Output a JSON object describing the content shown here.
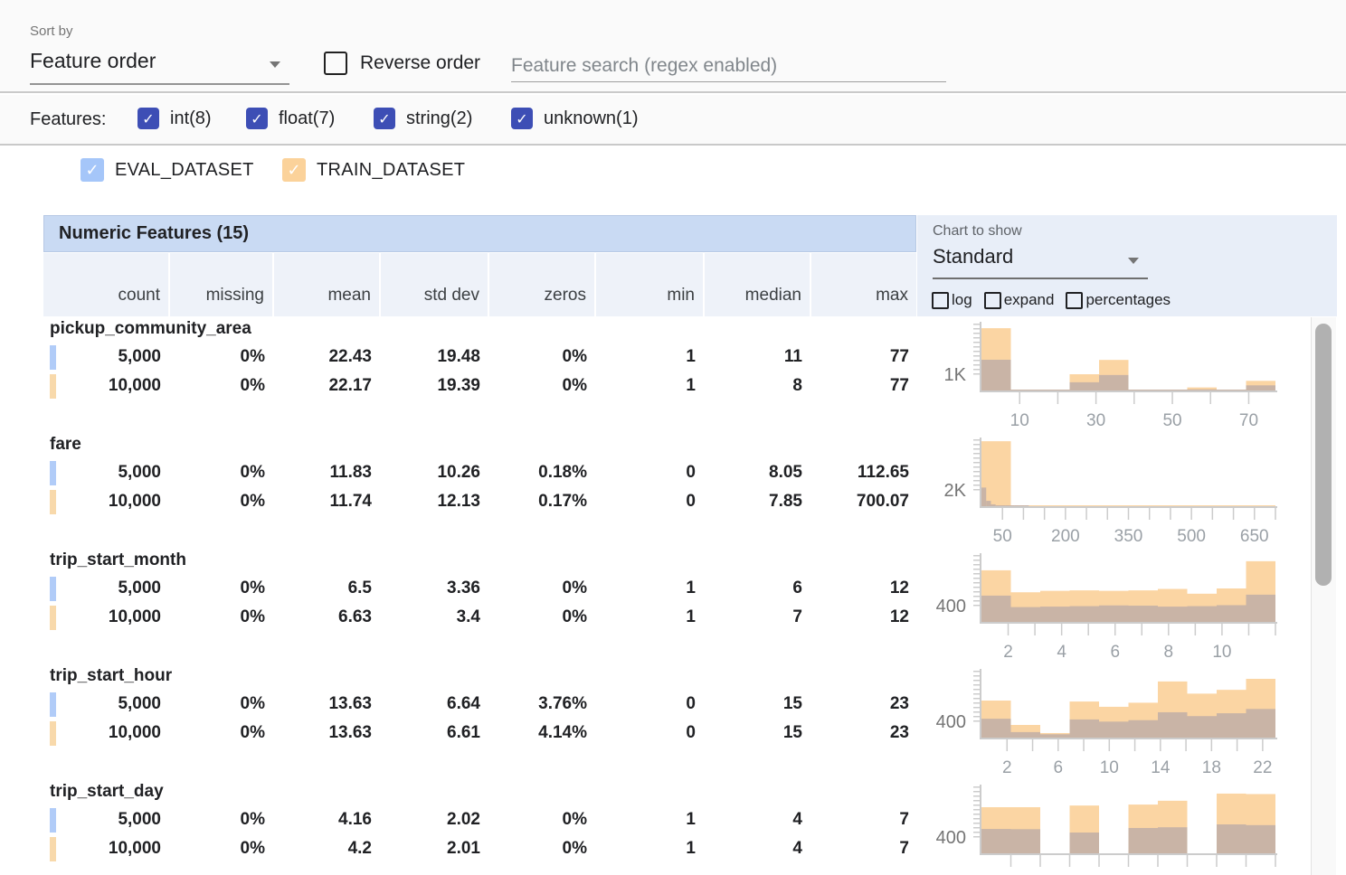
{
  "toolbar": {
    "sort_by_label": "Sort by",
    "sort_by_value": "Feature order",
    "reverse_order_label": "Reverse order",
    "reverse_order_checked": false,
    "search_placeholder": "Feature search (regex enabled)",
    "search_value": ""
  },
  "feature_filters": {
    "label": "Features:",
    "items": [
      {
        "label": "int(8)",
        "checked": true
      },
      {
        "label": "float(7)",
        "checked": true
      },
      {
        "label": "string(2)",
        "checked": true
      },
      {
        "label": "unknown(1)",
        "checked": true
      }
    ]
  },
  "datasets": [
    {
      "name": "EVAL_DATASET",
      "checked": true,
      "color": "#a5c6f9"
    },
    {
      "name": "TRAIN_DATASET",
      "checked": true,
      "color": "#fbd29a"
    }
  ],
  "table": {
    "title": "Numeric Features (15)",
    "columns": [
      "count",
      "missing",
      "mean",
      "std dev",
      "zeros",
      "min",
      "median",
      "max"
    ]
  },
  "chart_controls": {
    "label": "Chart to show",
    "selected": "Standard",
    "toggles": [
      {
        "label": "log",
        "checked": false
      },
      {
        "label": "expand",
        "checked": false
      },
      {
        "label": "percentages",
        "checked": false
      }
    ]
  },
  "features": [
    {
      "name": "pickup_community_area",
      "rows": [
        {
          "dataset": "EVAL_DATASET",
          "values": [
            "5,000",
            "0%",
            "22.43",
            "19.48",
            "0%",
            "1",
            "11",
            "77"
          ]
        },
        {
          "dataset": "TRAIN_DATASET",
          "values": [
            "10,000",
            "0%",
            "22.17",
            "19.39",
            "0%",
            "1",
            "8",
            "77"
          ]
        }
      ]
    },
    {
      "name": "fare",
      "rows": [
        {
          "dataset": "EVAL_DATASET",
          "values": [
            "5,000",
            "0%",
            "11.83",
            "10.26",
            "0.18%",
            "0",
            "8.05",
            "112.65"
          ]
        },
        {
          "dataset": "TRAIN_DATASET",
          "values": [
            "10,000",
            "0%",
            "11.74",
            "12.13",
            "0.17%",
            "0",
            "7.85",
            "700.07"
          ]
        }
      ]
    },
    {
      "name": "trip_start_month",
      "rows": [
        {
          "dataset": "EVAL_DATASET",
          "values": [
            "5,000",
            "0%",
            "6.5",
            "3.36",
            "0%",
            "1",
            "6",
            "12"
          ]
        },
        {
          "dataset": "TRAIN_DATASET",
          "values": [
            "10,000",
            "0%",
            "6.63",
            "3.4",
            "0%",
            "1",
            "7",
            "12"
          ]
        }
      ]
    },
    {
      "name": "trip_start_hour",
      "rows": [
        {
          "dataset": "EVAL_DATASET",
          "values": [
            "5,000",
            "0%",
            "13.63",
            "6.64",
            "3.76%",
            "0",
            "15",
            "23"
          ]
        },
        {
          "dataset": "TRAIN_DATASET",
          "values": [
            "10,000",
            "0%",
            "13.63",
            "6.61",
            "4.14%",
            "0",
            "15",
            "23"
          ]
        }
      ]
    },
    {
      "name": "trip_start_day",
      "rows": [
        {
          "dataset": "EVAL_DATASET",
          "values": [
            "5,000",
            "0%",
            "4.16",
            "2.02",
            "0%",
            "1",
            "4",
            "7"
          ]
        },
        {
          "dataset": "TRAIN_DATASET",
          "values": [
            "10,000",
            "0%",
            "4.2",
            "2.01",
            "0%",
            "1",
            "4",
            "7"
          ]
        }
      ]
    }
  ],
  "chart_data": [
    {
      "feature": "pickup_community_area",
      "type": "histogram",
      "xlim": [
        0,
        77
      ],
      "ylim": [
        0,
        3500
      ],
      "y_gridline_label": "1K",
      "y_gridline_value": 1000,
      "xticks": [
        10,
        30,
        50,
        70
      ],
      "minor_tick_step": 10,
      "series": [
        {
          "name": "TRAIN_DATASET",
          "buckets": [
            [
              0,
              7.7,
              3260
            ],
            [
              7.7,
              15.4,
              15
            ],
            [
              15.4,
              23.1,
              40
            ],
            [
              23.1,
              30.8,
              850
            ],
            [
              30.8,
              38.5,
              1600
            ],
            [
              38.5,
              46.2,
              15
            ],
            [
              46.2,
              53.9,
              15
            ],
            [
              53.9,
              61.6,
              160
            ],
            [
              61.6,
              69.3,
              15
            ],
            [
              69.3,
              77,
              505
            ]
          ]
        },
        {
          "name": "EVAL_DATASET",
          "buckets": [
            [
              0,
              7.7,
              1610
            ],
            [
              7.7,
              15.4,
              8
            ],
            [
              15.4,
              23.1,
              20
            ],
            [
              23.1,
              30.8,
              430
            ],
            [
              30.8,
              38.5,
              810
            ],
            [
              38.5,
              46.2,
              8
            ],
            [
              46.2,
              53.9,
              8
            ],
            [
              53.9,
              61.6,
              60
            ],
            [
              61.6,
              69.3,
              8
            ],
            [
              69.3,
              77,
              270
            ]
          ]
        }
      ]
    },
    {
      "feature": "fare",
      "type": "histogram",
      "xlim": [
        0,
        700
      ],
      "ylim": [
        0,
        7000
      ],
      "y_gridline_label": "2K",
      "y_gridline_value": 2000,
      "xticks": [
        50,
        200,
        350,
        500,
        650
      ],
      "minor_tick_step": 50,
      "series": [
        {
          "name": "TRAIN_DATASET",
          "buckets": [
            [
              0,
              70,
              6800
            ],
            [
              70,
              140,
              25
            ],
            [
              140,
              210,
              12
            ],
            [
              210,
              280,
              8
            ],
            [
              280,
              350,
              6
            ],
            [
              350,
              420,
              5
            ],
            [
              420,
              490,
              4
            ],
            [
              490,
              560,
              3
            ],
            [
              560,
              630,
              3
            ],
            [
              630,
              700,
              4
            ]
          ]
        },
        {
          "name": "EVAL_DATASET",
          "buckets": [
            [
              0,
              11.3,
              1950
            ],
            [
              11.3,
              22.5,
              560
            ],
            [
              22.5,
              33.8,
              190
            ],
            [
              33.8,
              45.1,
              60
            ],
            [
              45.1,
              56.3,
              25
            ],
            [
              56.3,
              67.6,
              10
            ],
            [
              67.6,
              78.9,
              5
            ],
            [
              78.9,
              90.2,
              3
            ],
            [
              90.2,
              101.4,
              2
            ],
            [
              101.4,
              112.7,
              2
            ]
          ]
        }
      ]
    },
    {
      "feature": "trip_start_month",
      "type": "histogram",
      "xlim": [
        1,
        12
      ],
      "ylim": [
        0,
        1400
      ],
      "y_gridline_label": "400",
      "y_gridline_value": 400,
      "xticks": [
        2,
        4,
        6,
        8,
        10
      ],
      "minor_tick_step": 1,
      "series": [
        {
          "name": "TRAIN_DATASET",
          "buckets": [
            [
              1,
              2.1,
              1080
            ],
            [
              2.1,
              3.2,
              620
            ],
            [
              3.2,
              4.3,
              650
            ],
            [
              4.3,
              5.4,
              660
            ],
            [
              5.4,
              6.5,
              650
            ],
            [
              6.5,
              7.6,
              660
            ],
            [
              7.6,
              8.7,
              690
            ],
            [
              8.7,
              9.8,
              590
            ],
            [
              9.8,
              10.9,
              700
            ],
            [
              10.9,
              12,
              1270
            ]
          ]
        },
        {
          "name": "EVAL_DATASET",
          "buckets": [
            [
              1,
              2.1,
              550
            ],
            [
              2.1,
              3.2,
              310
            ],
            [
              3.2,
              4.3,
              320
            ],
            [
              4.3,
              5.4,
              330
            ],
            [
              5.4,
              6.5,
              345
            ],
            [
              6.5,
              7.6,
              340
            ],
            [
              7.6,
              8.7,
              320
            ],
            [
              8.7,
              9.8,
              330
            ],
            [
              9.8,
              10.9,
              350
            ],
            [
              10.9,
              12,
              570
            ]
          ]
        }
      ]
    },
    {
      "feature": "trip_start_hour",
      "type": "histogram",
      "xlim": [
        0,
        23
      ],
      "ylim": [
        0,
        1400
      ],
      "y_gridline_label": "400",
      "y_gridline_value": 400,
      "xticks": [
        2,
        6,
        10,
        14,
        18,
        22
      ],
      "minor_tick_step": 2,
      "series": [
        {
          "name": "TRAIN_DATASET",
          "buckets": [
            [
              0,
              2.3,
              775
            ],
            [
              2.3,
              4.6,
              265
            ],
            [
              4.6,
              6.9,
              95
            ],
            [
              6.9,
              9.2,
              755
            ],
            [
              9.2,
              11.5,
              645
            ],
            [
              11.5,
              13.8,
              730
            ],
            [
              13.8,
              16.1,
              1175
            ],
            [
              16.1,
              18.4,
              920
            ],
            [
              18.4,
              20.7,
              1000
            ],
            [
              20.7,
              23,
              1230
            ]
          ]
        },
        {
          "name": "EVAL_DATASET",
          "buckets": [
            [
              0,
              2.3,
              395
            ],
            [
              2.3,
              4.6,
              115
            ],
            [
              4.6,
              6.9,
              70
            ],
            [
              6.9,
              9.2,
              380
            ],
            [
              9.2,
              11.5,
              335
            ],
            [
              11.5,
              13.8,
              365
            ],
            [
              13.8,
              16.1,
              530
            ],
            [
              16.1,
              18.4,
              450
            ],
            [
              18.4,
              20.7,
              510
            ],
            [
              20.7,
              23,
              600
            ]
          ]
        }
      ]
    },
    {
      "feature": "trip_start_day",
      "type": "histogram",
      "xlim": [
        1,
        7
      ],
      "ylim": [
        0,
        1400
      ],
      "y_gridline_label": "400",
      "y_gridline_value": 400,
      "xticks": [],
      "minor_tick_step": 0.6,
      "series": [
        {
          "name": "TRAIN_DATASET",
          "buckets": [
            [
              1,
              1.6,
              965
            ],
            [
              1.6,
              2.2,
              965
            ],
            [
              2.2,
              2.8,
              0
            ],
            [
              2.8,
              3.4,
              1000
            ],
            [
              3.4,
              4,
              0
            ],
            [
              4,
              4.6,
              1020
            ],
            [
              4.6,
              5.2,
              1100
            ],
            [
              5.2,
              5.8,
              0
            ],
            [
              5.8,
              6.4,
              1250
            ],
            [
              6.4,
              7,
              1240
            ]
          ]
        },
        {
          "name": "EVAL_DATASET",
          "buckets": [
            [
              1,
              1.6,
              510
            ],
            [
              1.6,
              2.2,
              505
            ],
            [
              2.2,
              2.8,
              0
            ],
            [
              2.8,
              3.4,
              435
            ],
            [
              3.4,
              4,
              0
            ],
            [
              4,
              4.6,
              530
            ],
            [
              4.6,
              5.2,
              545
            ],
            [
              5.2,
              5.8,
              0
            ],
            [
              5.8,
              6.4,
              605
            ],
            [
              6.4,
              7,
              590
            ]
          ]
        }
      ]
    }
  ],
  "colors": {
    "accent_checkbox": "#3d4eb5",
    "eval_checkbox": "#a5c6f9",
    "train_checkbox": "#fbd29a",
    "eval_chip": "#b1ccf8",
    "train_chip": "#f8d9ab",
    "train_bar": "#fbd5a3",
    "eval_overlap_bar": "#c9b4a6",
    "axis": "#cccccc",
    "tick_label": "#9aa0a6",
    "header_band": "#c9daf3",
    "column_band": "#eef2f9",
    "panel_bg": "#e8eef8"
  },
  "glyphs": {
    "check": "✓"
  }
}
